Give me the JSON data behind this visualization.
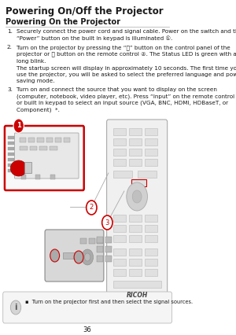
{
  "title": "Powering On/Off the Projector",
  "subtitle": "Powering On the Projector",
  "page_number": "36",
  "note_text": "Turn on the projector first and then select the signal sources.",
  "bg_color": "#ffffff",
  "title_color": "#1a1a1a",
  "text_color": "#1a1a1a",
  "red_color": "#cc0000",
  "circle_red": "#cc0000",
  "remote_body": "#f0f0f0",
  "remote_border": "#aaaaaa",
  "projector_body": "#e8e8e8",
  "projector_border": "#bbbbbb",
  "item1_text": "Securely connect the power cord and signal cable. Power on the switch and the\n“Power” button on the built in keypad is illuminated ①.",
  "item2_text": "Turn on the projector by pressing the “⏻” button on the control panel of the\nprojector or ⓪ button on the remote control ②. The Status LED is green with a\nlong blink.",
  "item_extra": "The startup screen will display in approximately 10 seconds. The first time you\nuse the projector, you will be asked to select the preferred language and power\nsaving mode.",
  "item3_text": "Turn on and connect the source that you want to display on the screen\n(computer, notebook, video player, etc). Press “Input” on the remote control\nor built in keypad to select an input source (VGA, BNC, HDMI, HDBaseT, or\nComponent)  *.",
  "fs_body": 5.2,
  "fs_title": 8.5,
  "fs_subtitle": 7.0
}
